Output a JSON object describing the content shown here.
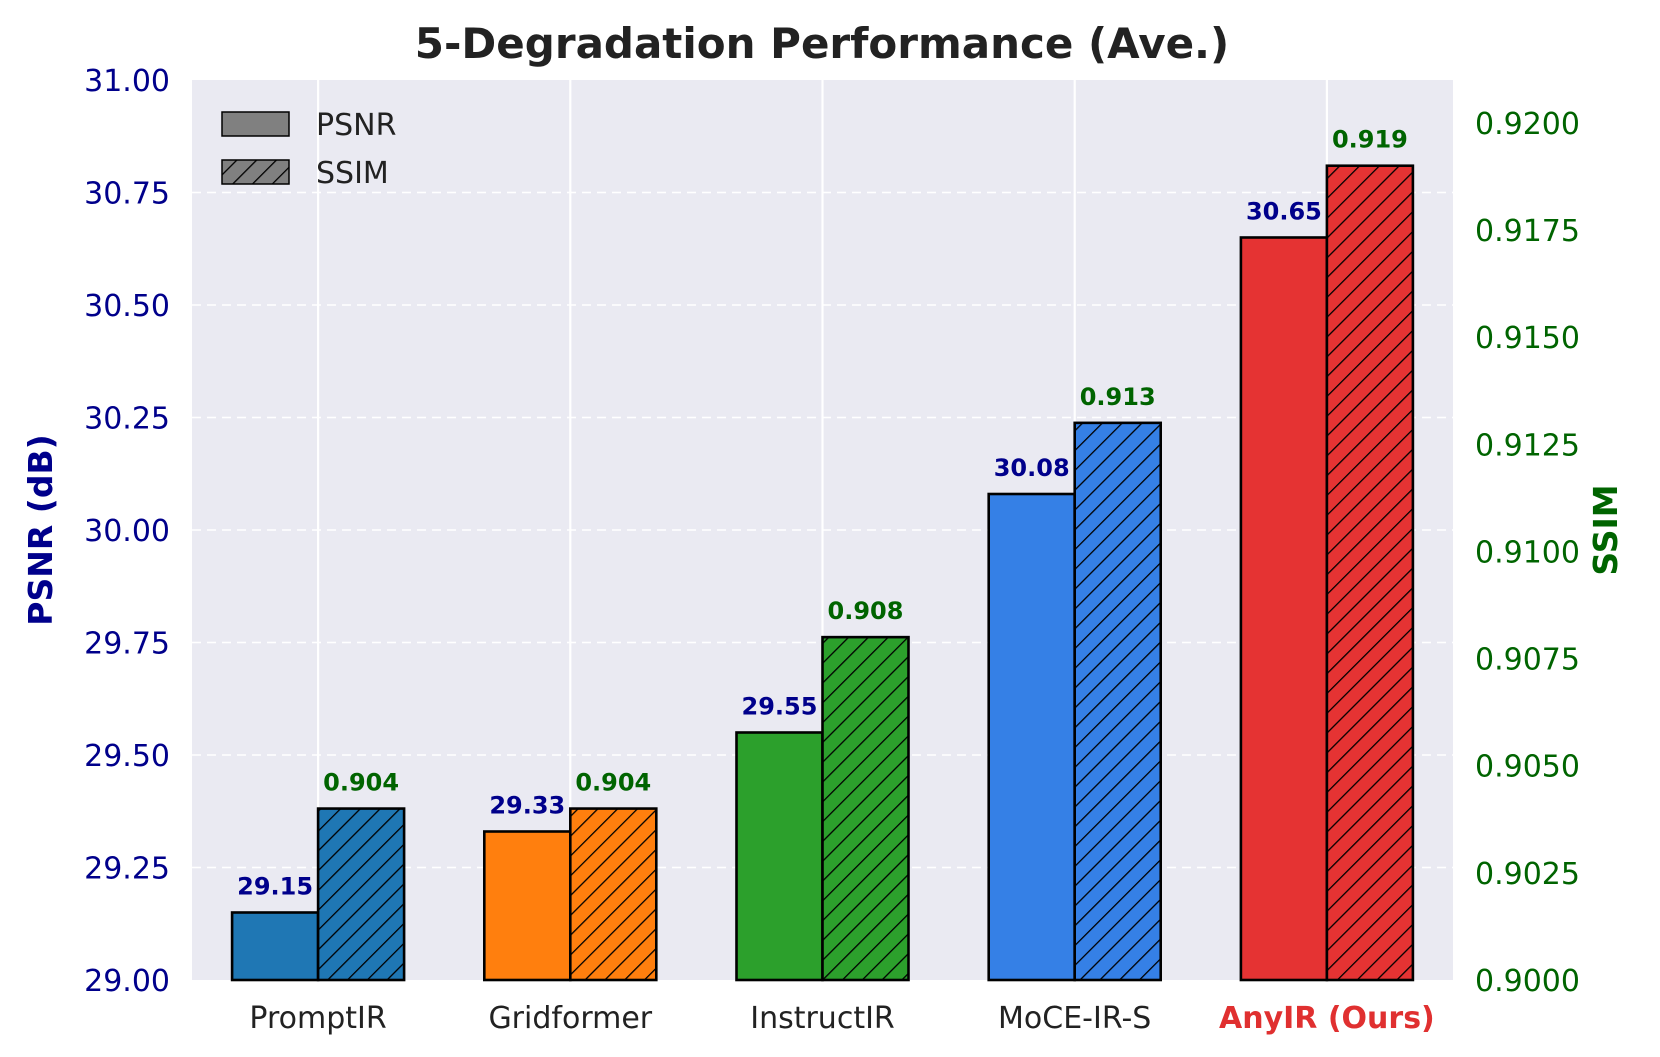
{
  "chart_data": {
    "type": "bar",
    "title": "5-Degradation Performance (Ave.)",
    "categories": [
      "PromptIR",
      "Gridformer",
      "InstructIR",
      "MoCE-IR-S",
      "AnyIR (Ours)"
    ],
    "highlight_category": "AnyIR (Ours)",
    "highlight_color": "#e03030",
    "bar_colors": [
      "#1f77b4",
      "#ff7f0e",
      "#2ca02c",
      "#3580e6",
      "#e53333"
    ],
    "series": [
      {
        "name": "PSNR",
        "axis": "left",
        "hatch": false,
        "values": [
          29.15,
          29.33,
          29.55,
          30.08,
          30.65
        ],
        "labels": [
          "29.15",
          "29.33",
          "29.55",
          "30.08",
          "30.65"
        ],
        "label_color": "#00008b"
      },
      {
        "name": "SSIM",
        "axis": "right",
        "hatch": true,
        "values": [
          0.904,
          0.904,
          0.908,
          0.913,
          0.919
        ],
        "labels": [
          "0.904",
          "0.904",
          "0.908",
          "0.913",
          "0.919"
        ],
        "label_color": "#006400"
      }
    ],
    "ylabel_left": "PSNR (dB)",
    "ylabel_right": "SSIM",
    "ylim_left": [
      29.0,
      31.0
    ],
    "ylim_right": [
      0.9,
      0.921
    ],
    "yticks_left": [
      "29.00",
      "29.25",
      "29.50",
      "29.75",
      "30.00",
      "30.25",
      "30.50",
      "30.75",
      "31.00"
    ],
    "yticks_right": [
      "0.9000",
      "0.9025",
      "0.9050",
      "0.9075",
      "0.9100",
      "0.9125",
      "0.9150",
      "0.9175",
      "0.9200"
    ],
    "left_axis_color": "#00008b",
    "right_axis_color": "#006400",
    "legend": {
      "placement": "top-left",
      "entries": [
        "PSNR",
        "SSIM"
      ]
    },
    "grid": true,
    "background": "#eaeaf2"
  }
}
